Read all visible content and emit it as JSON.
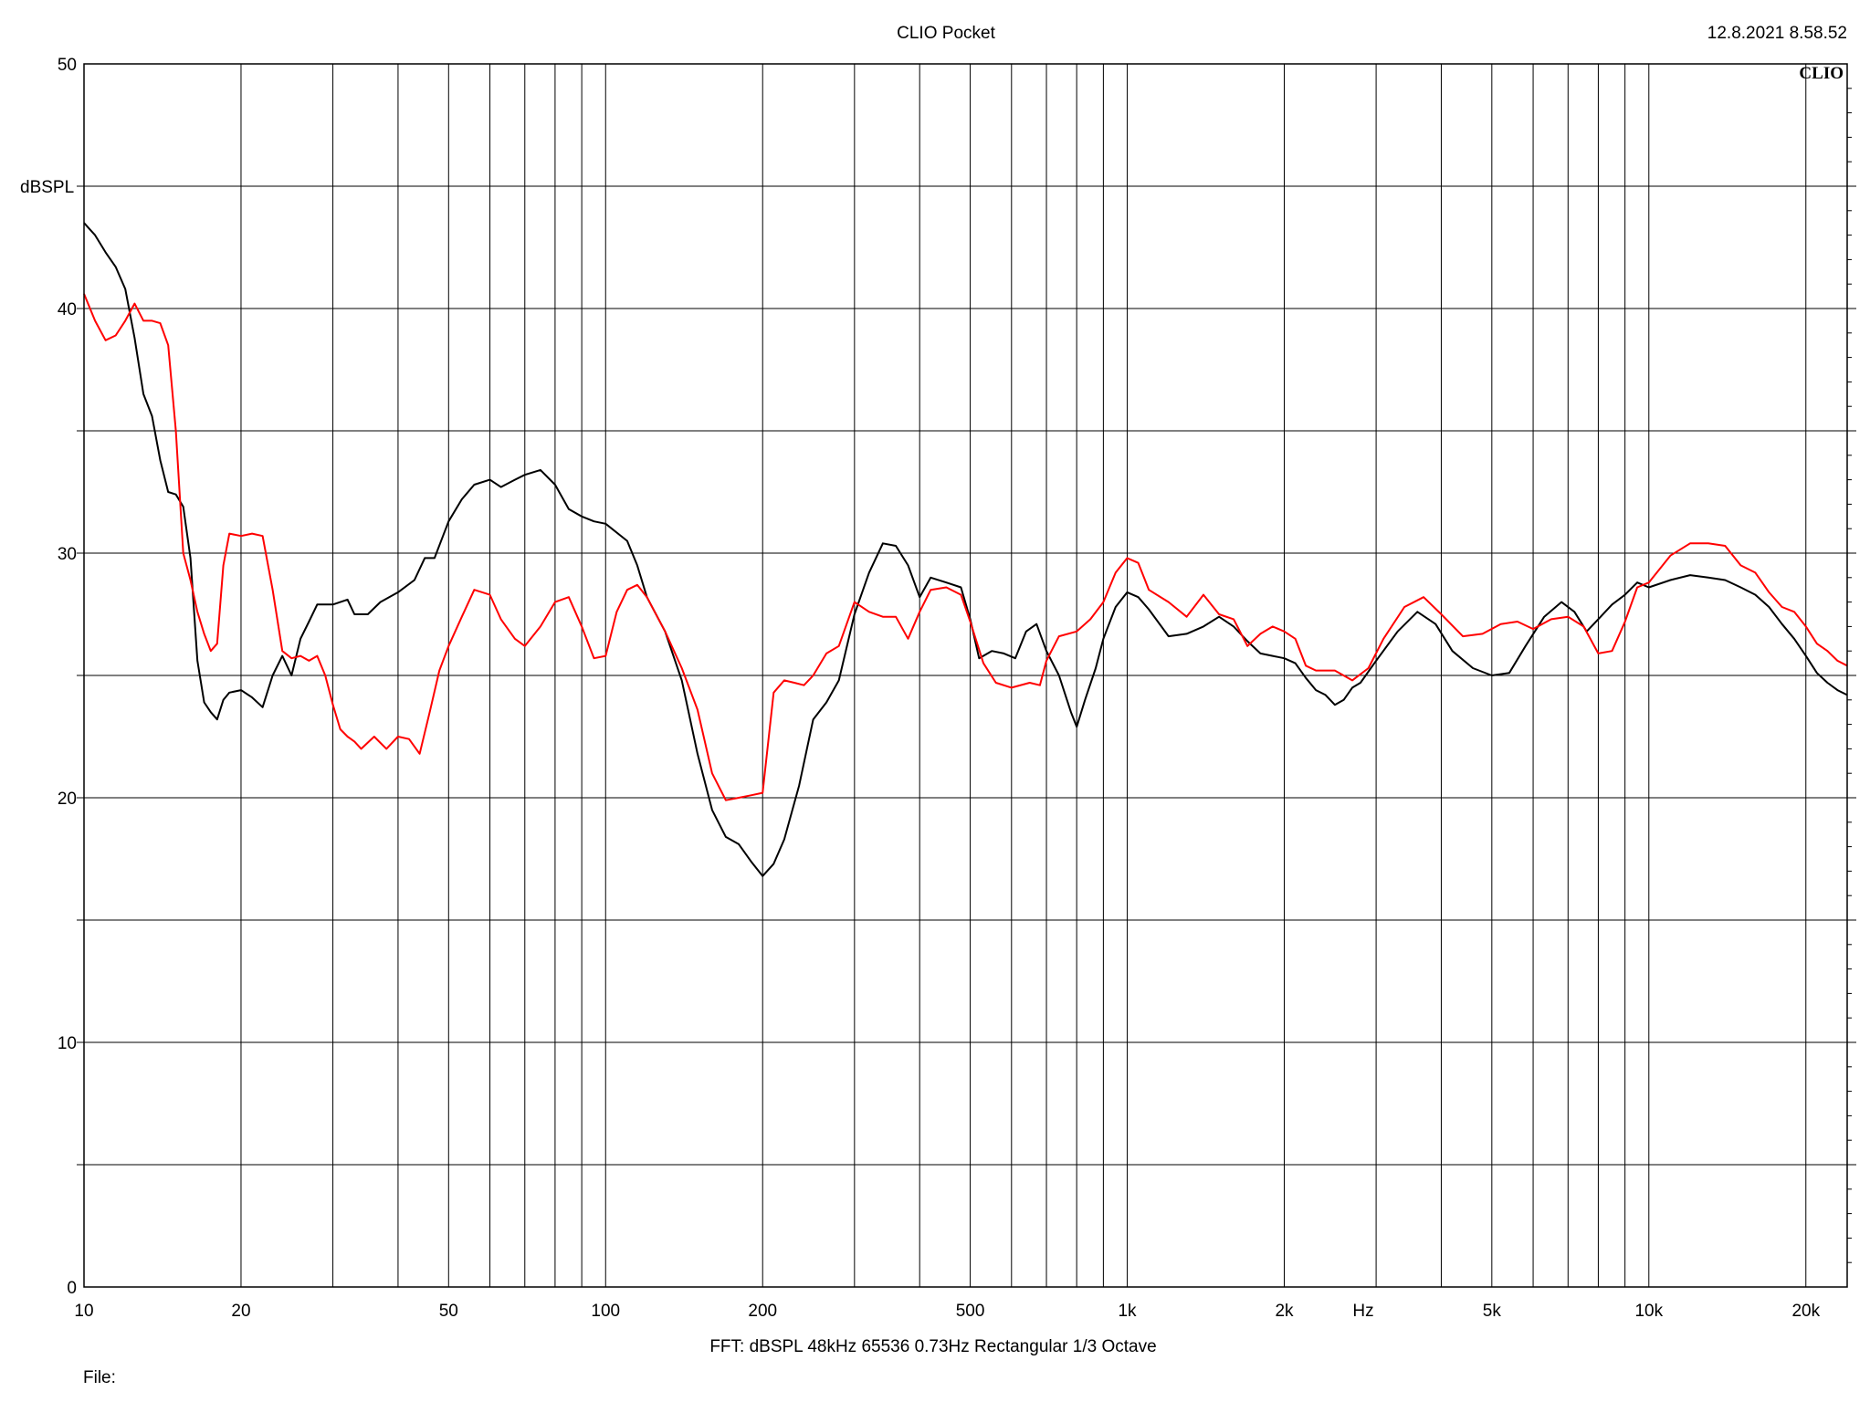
{
  "header": {
    "app_title": "CLIO Pocket",
    "timestamp": "12.8.2021 8.58.52",
    "logo_text": "CLIO"
  },
  "footer": {
    "settings": "FFT:  dBSPL  48kHz   65536  0.73Hz  Rectangular  1/3 Octave",
    "file_label": "File:"
  },
  "chart_data": {
    "type": "line",
    "title": "CLIO Pocket",
    "xlabel": "Hz",
    "ylabel": "dBSPL",
    "x_scale": "log",
    "xlim": [
      10,
      24000
    ],
    "ylim": [
      0,
      50
    ],
    "grid": true,
    "x_tick_values": [
      10,
      20,
      50,
      100,
      200,
      500,
      1000,
      2000,
      5000,
      10000,
      20000
    ],
    "x_tick_labels": [
      "10",
      "20",
      "50",
      "100",
      "200",
      "500",
      "1k",
      "2k",
      "5k",
      "10k",
      "20k"
    ],
    "y_tick_values": [
      0,
      10,
      20,
      30,
      40,
      50
    ],
    "y_tick_labels": [
      "0",
      "10",
      "20",
      "30",
      "40",
      "50"
    ],
    "series": [
      {
        "color": "#000000",
        "points": [
          [
            10,
            43.5
          ],
          [
            10.5,
            43.0
          ],
          [
            11,
            42.3
          ],
          [
            11.5,
            41.7
          ],
          [
            12,
            40.8
          ],
          [
            12.5,
            38.8
          ],
          [
            13,
            36.5
          ],
          [
            13.5,
            35.6
          ],
          [
            14,
            33.8
          ],
          [
            14.5,
            32.5
          ],
          [
            15,
            32.4
          ],
          [
            15.5,
            31.9
          ],
          [
            16,
            29.8
          ],
          [
            16.5,
            25.6
          ],
          [
            17,
            23.9
          ],
          [
            17.5,
            23.5
          ],
          [
            18,
            23.2
          ],
          [
            18.5,
            24.0
          ],
          [
            19,
            24.3
          ],
          [
            20,
            24.4
          ],
          [
            21,
            24.1
          ],
          [
            22,
            23.7
          ],
          [
            23,
            25.0
          ],
          [
            24,
            25.8
          ],
          [
            25,
            25.0
          ],
          [
            26,
            26.5
          ],
          [
            27,
            27.2
          ],
          [
            28,
            27.9
          ],
          [
            30,
            27.9
          ],
          [
            32,
            28.1
          ],
          [
            33,
            27.5
          ],
          [
            35,
            27.5
          ],
          [
            37,
            28.0
          ],
          [
            40,
            28.4
          ],
          [
            43,
            28.9
          ],
          [
            45,
            29.8
          ],
          [
            47,
            29.8
          ],
          [
            50,
            31.3
          ],
          [
            53,
            32.2
          ],
          [
            56,
            32.8
          ],
          [
            60,
            33.0
          ],
          [
            63,
            32.7
          ],
          [
            67,
            33.0
          ],
          [
            70,
            33.2
          ],
          [
            75,
            33.4
          ],
          [
            80,
            32.8
          ],
          [
            85,
            31.8
          ],
          [
            90,
            31.5
          ],
          [
            95,
            31.3
          ],
          [
            100,
            31.2
          ],
          [
            110,
            30.5
          ],
          [
            115,
            29.5
          ],
          [
            120,
            28.2
          ],
          [
            130,
            26.8
          ],
          [
            140,
            24.8
          ],
          [
            150,
            21.8
          ],
          [
            160,
            19.5
          ],
          [
            170,
            18.4
          ],
          [
            180,
            18.1
          ],
          [
            190,
            17.4
          ],
          [
            200,
            16.8
          ],
          [
            210,
            17.3
          ],
          [
            220,
            18.3
          ],
          [
            235,
            20.5
          ],
          [
            250,
            23.2
          ],
          [
            265,
            23.9
          ],
          [
            280,
            24.8
          ],
          [
            300,
            27.5
          ],
          [
            320,
            29.2
          ],
          [
            340,
            30.4
          ],
          [
            360,
            30.3
          ],
          [
            380,
            29.5
          ],
          [
            400,
            28.2
          ],
          [
            420,
            29.0
          ],
          [
            450,
            28.8
          ],
          [
            480,
            28.6
          ],
          [
            500,
            27.3
          ],
          [
            520,
            25.7
          ],
          [
            550,
            26.0
          ],
          [
            580,
            25.9
          ],
          [
            610,
            25.7
          ],
          [
            640,
            26.8
          ],
          [
            670,
            27.1
          ],
          [
            700,
            26.0
          ],
          [
            740,
            25.0
          ],
          [
            780,
            23.5
          ],
          [
            800,
            22.9
          ],
          [
            830,
            24.0
          ],
          [
            870,
            25.3
          ],
          [
            900,
            26.5
          ],
          [
            950,
            27.8
          ],
          [
            1000,
            28.4
          ],
          [
            1050,
            28.2
          ],
          [
            1100,
            27.7
          ],
          [
            1200,
            26.6
          ],
          [
            1300,
            26.7
          ],
          [
            1400,
            27.0
          ],
          [
            1500,
            27.4
          ],
          [
            1600,
            27.0
          ],
          [
            1700,
            26.4
          ],
          [
            1800,
            25.9
          ],
          [
            1900,
            25.8
          ],
          [
            2000,
            25.7
          ],
          [
            2100,
            25.5
          ],
          [
            2200,
            24.9
          ],
          [
            2300,
            24.4
          ],
          [
            2400,
            24.2
          ],
          [
            2500,
            23.8
          ],
          [
            2600,
            24.0
          ],
          [
            2700,
            24.5
          ],
          [
            2800,
            24.7
          ],
          [
            3000,
            25.6
          ],
          [
            3300,
            26.8
          ],
          [
            3600,
            27.6
          ],
          [
            3900,
            27.1
          ],
          [
            4200,
            26.0
          ],
          [
            4600,
            25.3
          ],
          [
            5000,
            25.0
          ],
          [
            5400,
            25.1
          ],
          [
            5800,
            26.2
          ],
          [
            6300,
            27.4
          ],
          [
            6800,
            28.0
          ],
          [
            7200,
            27.6
          ],
          [
            7600,
            26.8
          ],
          [
            8000,
            27.3
          ],
          [
            8500,
            27.9
          ],
          [
            9000,
            28.3
          ],
          [
            9500,
            28.8
          ],
          [
            10000,
            28.6
          ],
          [
            11000,
            28.9
          ],
          [
            12000,
            29.1
          ],
          [
            13000,
            29.0
          ],
          [
            14000,
            28.9
          ],
          [
            15000,
            28.6
          ],
          [
            16000,
            28.3
          ],
          [
            17000,
            27.8
          ],
          [
            18000,
            27.1
          ],
          [
            19000,
            26.5
          ],
          [
            20000,
            25.8
          ],
          [
            21000,
            25.1
          ],
          [
            22000,
            24.7
          ],
          [
            23000,
            24.4
          ],
          [
            24000,
            24.2
          ]
        ]
      },
      {
        "color": "#ff0000",
        "points": [
          [
            10,
            40.6
          ],
          [
            10.5,
            39.5
          ],
          [
            11,
            38.7
          ],
          [
            11.5,
            38.9
          ],
          [
            12,
            39.5
          ],
          [
            12.5,
            40.2
          ],
          [
            13,
            39.5
          ],
          [
            13.5,
            39.5
          ],
          [
            14,
            39.4
          ],
          [
            14.5,
            38.5
          ],
          [
            15,
            35.0
          ],
          [
            15.5,
            30.0
          ],
          [
            16,
            28.9
          ],
          [
            16.5,
            27.6
          ],
          [
            17,
            26.7
          ],
          [
            17.5,
            26.0
          ],
          [
            18,
            26.3
          ],
          [
            18.5,
            29.5
          ],
          [
            19,
            30.8
          ],
          [
            20,
            30.7
          ],
          [
            21,
            30.8
          ],
          [
            22,
            30.7
          ],
          [
            23,
            28.5
          ],
          [
            24,
            26.0
          ],
          [
            25,
            25.7
          ],
          [
            26,
            25.8
          ],
          [
            27,
            25.6
          ],
          [
            28,
            25.8
          ],
          [
            29,
            25.0
          ],
          [
            30,
            23.8
          ],
          [
            31,
            22.8
          ],
          [
            32,
            22.5
          ],
          [
            33,
            22.3
          ],
          [
            34,
            22.0
          ],
          [
            36,
            22.5
          ],
          [
            38,
            22.0
          ],
          [
            40,
            22.5
          ],
          [
            42,
            22.4
          ],
          [
            44,
            21.8
          ],
          [
            46,
            23.5
          ],
          [
            48,
            25.2
          ],
          [
            50,
            26.2
          ],
          [
            53,
            27.4
          ],
          [
            56,
            28.5
          ],
          [
            60,
            28.3
          ],
          [
            63,
            27.3
          ],
          [
            67,
            26.5
          ],
          [
            70,
            26.2
          ],
          [
            75,
            27.0
          ],
          [
            80,
            28.0
          ],
          [
            85,
            28.2
          ],
          [
            90,
            27.0
          ],
          [
            95,
            25.7
          ],
          [
            100,
            25.8
          ],
          [
            105,
            27.6
          ],
          [
            110,
            28.5
          ],
          [
            115,
            28.7
          ],
          [
            120,
            28.2
          ],
          [
            130,
            26.8
          ],
          [
            140,
            25.3
          ],
          [
            150,
            23.6
          ],
          [
            160,
            21.0
          ],
          [
            170,
            19.9
          ],
          [
            180,
            20.0
          ],
          [
            190,
            20.1
          ],
          [
            200,
            20.2
          ],
          [
            210,
            24.3
          ],
          [
            220,
            24.8
          ],
          [
            230,
            24.7
          ],
          [
            240,
            24.6
          ],
          [
            250,
            25.0
          ],
          [
            265,
            25.9
          ],
          [
            280,
            26.2
          ],
          [
            300,
            28.0
          ],
          [
            320,
            27.6
          ],
          [
            340,
            27.4
          ],
          [
            360,
            27.4
          ],
          [
            380,
            26.5
          ],
          [
            400,
            27.6
          ],
          [
            420,
            28.5
          ],
          [
            450,
            28.6
          ],
          [
            480,
            28.3
          ],
          [
            500,
            27.2
          ],
          [
            530,
            25.5
          ],
          [
            560,
            24.7
          ],
          [
            600,
            24.5
          ],
          [
            650,
            24.7
          ],
          [
            680,
            24.6
          ],
          [
            700,
            25.6
          ],
          [
            740,
            26.6
          ],
          [
            800,
            26.8
          ],
          [
            850,
            27.3
          ],
          [
            900,
            28.0
          ],
          [
            950,
            29.2
          ],
          [
            1000,
            29.8
          ],
          [
            1050,
            29.6
          ],
          [
            1100,
            28.5
          ],
          [
            1200,
            28.0
          ],
          [
            1300,
            27.4
          ],
          [
            1400,
            28.3
          ],
          [
            1500,
            27.5
          ],
          [
            1600,
            27.3
          ],
          [
            1700,
            26.2
          ],
          [
            1800,
            26.7
          ],
          [
            1900,
            27.0
          ],
          [
            2000,
            26.8
          ],
          [
            2100,
            26.5
          ],
          [
            2200,
            25.4
          ],
          [
            2300,
            25.2
          ],
          [
            2500,
            25.2
          ],
          [
            2700,
            24.8
          ],
          [
            2900,
            25.3
          ],
          [
            3100,
            26.5
          ],
          [
            3400,
            27.8
          ],
          [
            3700,
            28.2
          ],
          [
            4000,
            27.5
          ],
          [
            4400,
            26.6
          ],
          [
            4800,
            26.7
          ],
          [
            5200,
            27.1
          ],
          [
            5600,
            27.2
          ],
          [
            6000,
            26.9
          ],
          [
            6500,
            27.3
          ],
          [
            7000,
            27.4
          ],
          [
            7500,
            27.0
          ],
          [
            8000,
            25.9
          ],
          [
            8500,
            26.0
          ],
          [
            9000,
            27.2
          ],
          [
            9500,
            28.6
          ],
          [
            10000,
            28.8
          ],
          [
            11000,
            29.9
          ],
          [
            12000,
            30.4
          ],
          [
            13000,
            30.4
          ],
          [
            14000,
            30.3
          ],
          [
            15000,
            29.5
          ],
          [
            16000,
            29.2
          ],
          [
            17000,
            28.4
          ],
          [
            18000,
            27.8
          ],
          [
            19000,
            27.6
          ],
          [
            20000,
            27.0
          ],
          [
            21000,
            26.3
          ],
          [
            22000,
            26.0
          ],
          [
            23000,
            25.6
          ],
          [
            24000,
            25.4
          ]
        ]
      }
    ]
  }
}
